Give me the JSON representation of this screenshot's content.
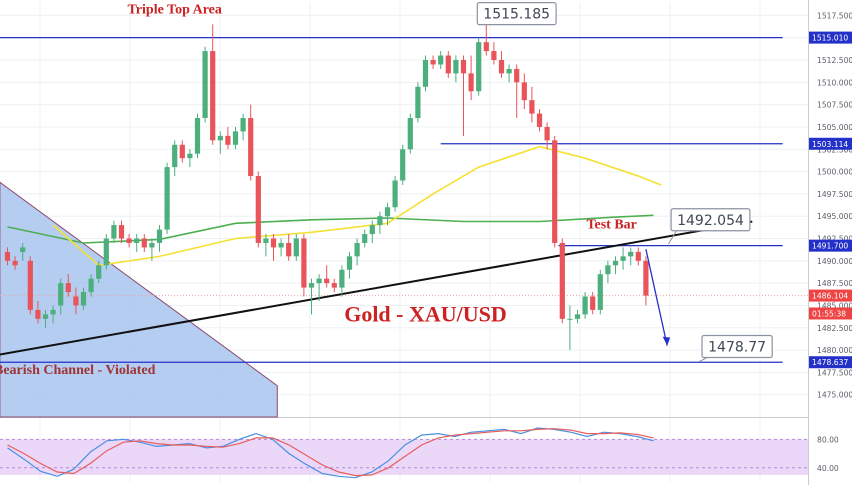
{
  "chart_data": [
    {
      "type": "candlestick",
      "title": "Gold - XAU/USD",
      "symbol": "XAU/USD",
      "ylim": [
        1472.5,
        1519.0
      ],
      "grid": true,
      "yticks": [
        "1517.500",
        "1515.000",
        "1512.500",
        "1510.000",
        "1507.500",
        "1505.000",
        "1502.500",
        "1500.000",
        "1497.500",
        "1495.000",
        "1492.500",
        "1490.000",
        "1487.500",
        "1485.000",
        "1482.500",
        "1480.000",
        "1477.500",
        "1475.000"
      ],
      "ytick_values": [
        1517.5,
        1515.0,
        1512.5,
        1510.0,
        1507.5,
        1505.0,
        1502.5,
        1500.0,
        1497.5,
        1495.0,
        1492.5,
        1490.0,
        1487.5,
        1485.0,
        1482.5,
        1480.0,
        1477.5,
        1475.0
      ],
      "price_labels": [
        {
          "name": "resistance-top",
          "value": 1515.01,
          "text": "1515.010",
          "color": "#2431c9"
        },
        {
          "name": "resistance-mid",
          "value": 1503.114,
          "text": "1503.114",
          "color": "#2431c9"
        },
        {
          "name": "test-level",
          "value": 1491.7,
          "text": "1491.700",
          "color": "#2431c9"
        },
        {
          "name": "last-price",
          "value": 1486.104,
          "text": "1486.104",
          "color": "#ee4444"
        },
        {
          "name": "countdown",
          "value": 1484.1,
          "text": "01:55:38",
          "color": "#ee4444"
        },
        {
          "name": "support",
          "value": 1478.637,
          "text": "1478.637",
          "color": "#2431c9"
        }
      ],
      "candles": [
        [
          1491,
          1491.5,
          1489.5,
          1490
        ],
        [
          1490,
          1490.5,
          1489,
          1489.5
        ],
        [
          1491,
          1492,
          1490,
          1491.5
        ],
        [
          1490,
          1490.5,
          1484,
          1484.5
        ],
        [
          1484.5,
          1485.5,
          1483,
          1483.5
        ],
        [
          1483.5,
          1484.5,
          1482.5,
          1484
        ],
        [
          1484,
          1485,
          1483,
          1484.5
        ],
        [
          1485,
          1488,
          1484,
          1487.5
        ],
        [
          1487.5,
          1488.5,
          1486,
          1486.5
        ],
        [
          1486,
          1487,
          1484,
          1485
        ],
        [
          1485,
          1487,
          1484.5,
          1486.5
        ],
        [
          1486.5,
          1488.5,
          1486,
          1488
        ],
        [
          1488,
          1490,
          1487.5,
          1489.5
        ],
        [
          1489.5,
          1493,
          1489,
          1492.5
        ],
        [
          1492.5,
          1494.5,
          1492,
          1494
        ],
        [
          1494,
          1494.5,
          1492,
          1492.5
        ],
        [
          1492.5,
          1493,
          1491.5,
          1492
        ],
        [
          1492,
          1493,
          1491,
          1492.5
        ],
        [
          1492.5,
          1493,
          1491,
          1491.5
        ],
        [
          1491.5,
          1492.5,
          1490,
          1492
        ],
        [
          1492,
          1494,
          1491,
          1493.5
        ],
        [
          1493.5,
          1501,
          1493,
          1500.5
        ],
        [
          1500.5,
          1503.5,
          1499.5,
          1503
        ],
        [
          1503,
          1503.5,
          1501,
          1501.5
        ],
        [
          1501.5,
          1502.5,
          1500.5,
          1502
        ],
        [
          1502,
          1506.5,
          1501.5,
          1506
        ],
        [
          1506,
          1514,
          1505.5,
          1513.5
        ],
        [
          1513.5,
          1516.5,
          1503,
          1503.5
        ],
        [
          1503.5,
          1504.5,
          1502,
          1504
        ],
        [
          1504,
          1505,
          1502.5,
          1503
        ],
        [
          1503,
          1505,
          1502.5,
          1504.5
        ],
        [
          1504.5,
          1506.5,
          1503.5,
          1506
        ],
        [
          1506,
          1507.5,
          1499,
          1499.5
        ],
        [
          1499.5,
          1500,
          1491.5,
          1492
        ],
        [
          1492,
          1493,
          1490.5,
          1492.5
        ],
        [
          1492.5,
          1493,
          1490,
          1491.5
        ],
        [
          1491.5,
          1492.5,
          1490.5,
          1492
        ],
        [
          1492,
          1493,
          1490,
          1490.5
        ],
        [
          1490.5,
          1493,
          1490,
          1492.5
        ],
        [
          1492.5,
          1493,
          1486,
          1487
        ],
        [
          1487,
          1488,
          1484,
          1487.5
        ],
        [
          1487.5,
          1488.5,
          1485.5,
          1488
        ],
        [
          1488,
          1489.5,
          1487,
          1487.5
        ],
        [
          1487.5,
          1488,
          1486.5,
          1487
        ],
        [
          1487,
          1489.5,
          1486,
          1489
        ],
        [
          1489,
          1491,
          1488,
          1490.5
        ],
        [
          1490.5,
          1492.5,
          1489.5,
          1492
        ],
        [
          1492,
          1493.5,
          1491.5,
          1493
        ],
        [
          1493,
          1494.5,
          1492,
          1494
        ],
        [
          1494,
          1495.5,
          1493,
          1495
        ],
        [
          1495,
          1496.5,
          1494,
          1496
        ],
        [
          1496,
          1499.5,
          1495.5,
          1499
        ],
        [
          1499,
          1503,
          1498.5,
          1502.5
        ],
        [
          1502.5,
          1506.5,
          1502,
          1506
        ],
        [
          1506,
          1510,
          1505.5,
          1509.5
        ],
        [
          1509.5,
          1513,
          1509,
          1512.5
        ],
        [
          1512.5,
          1513,
          1511.5,
          1512
        ],
        [
          1512,
          1513.5,
          1511.5,
          1513
        ],
        [
          1513,
          1513.5,
          1510.5,
          1511
        ],
        [
          1511,
          1513,
          1510,
          1512.5
        ],
        [
          1512.5,
          1513,
          1504,
          1511
        ],
        [
          1511,
          1513,
          1508,
          1509
        ],
        [
          1509,
          1515,
          1508.5,
          1514.5
        ],
        [
          1514.5,
          1516.5,
          1513,
          1513.5
        ],
        [
          1513.5,
          1514.5,
          1512,
          1512.5
        ],
        [
          1512.5,
          1513.5,
          1510.5,
          1511
        ],
        [
          1511,
          1512,
          1510,
          1511.5
        ],
        [
          1511.5,
          1512,
          1506,
          1510
        ],
        [
          1510,
          1511,
          1507,
          1508
        ],
        [
          1508,
          1509.5,
          1505.5,
          1506.5
        ],
        [
          1506.5,
          1507,
          1504.5,
          1505
        ],
        [
          1505,
          1505.5,
          1502.5,
          1503.5
        ],
        [
          1503.5,
          1504,
          1491.5,
          1492
        ],
        [
          1492,
          1492.5,
          1483,
          1483.5
        ],
        [
          1483.5,
          1485,
          1480,
          1483.5
        ],
        [
          1483.5,
          1484.5,
          1483,
          1484
        ],
        [
          1484,
          1486.5,
          1483.5,
          1486
        ],
        [
          1486,
          1486.5,
          1484,
          1484.5
        ],
        [
          1484.5,
          1489,
          1484,
          1488.5
        ],
        [
          1488.5,
          1490,
          1487.5,
          1489.5
        ],
        [
          1489.5,
          1490.5,
          1488.5,
          1490
        ],
        [
          1490,
          1491.5,
          1489,
          1490.5
        ],
        [
          1490.5,
          1491.5,
          1489.5,
          1491
        ],
        [
          1491,
          1491.5,
          1489.5,
          1490
        ],
        [
          1490,
          1490.5,
          1485,
          1486.1
        ]
      ],
      "moving_averages": [
        {
          "name": "green-ma",
          "color": "#4caf50",
          "points": [
            [
              0,
              1493.8
            ],
            [
              10,
              1492
            ],
            [
              20,
              1492.4
            ],
            [
              30,
              1494.2
            ],
            [
              40,
              1494.6
            ],
            [
              50,
              1494.8
            ],
            [
              60,
              1494.4
            ],
            [
              70,
              1494.4
            ],
            [
              80,
              1494.9
            ],
            [
              85,
              1495.1
            ]
          ]
        },
        {
          "name": "yellow-ma",
          "color": "#f5e131",
          "points": [
            [
              6,
              1494
            ],
            [
              12,
              1489.5
            ],
            [
              20,
              1490.5
            ],
            [
              30,
              1492.5
            ],
            [
              40,
              1493.2
            ],
            [
              50,
              1494.2
            ],
            [
              56,
              1497.5
            ],
            [
              62,
              1500.5
            ],
            [
              70,
              1502.8
            ],
            [
              76,
              1501.5
            ],
            [
              83,
              1499.5
            ],
            [
              86,
              1498.5
            ]
          ]
        }
      ],
      "trendline": {
        "start": [
          -1,
          1479.5
        ],
        "end": [
          98,
          1494.4
        ],
        "color": "#111111"
      },
      "bearish_channel": {
        "top_left": [
          -1,
          1498.8
        ],
        "right_bottom": [
          35.5,
          1476.0
        ],
        "fill": "#a7c4ee",
        "label": "Bearish Channel - Violated"
      },
      "horizontal_lines": [
        {
          "name": "line-1515",
          "value": 1515.01,
          "from": -1,
          "to": 102
        },
        {
          "name": "line-1503",
          "value": 1503.114,
          "from": 57,
          "to": 102
        },
        {
          "name": "line-1491",
          "value": 1491.7,
          "from": 72.5,
          "to": 102
        },
        {
          "name": "line-1478",
          "value": 1478.637,
          "from": -1,
          "to": 102
        }
      ],
      "annotations": [
        {
          "name": "triple-top-label",
          "text": "Triple Top Area",
          "color": "#cc2222",
          "at": [
            22,
            1517.7
          ]
        },
        {
          "name": "test-bar-label",
          "text": "Test Bar",
          "color": "#cc2222",
          "at": [
            79.5,
            1493.6
          ]
        },
        {
          "name": "gold-title",
          "text": "Gold - XAU/USD",
          "color": "#cc2222",
          "at": [
            55,
            1483.2
          ]
        },
        {
          "name": "bearish-label",
          "text": "Bearish Channel - Violated",
          "color": "#a03434",
          "at": [
            10,
            1477.3
          ]
        }
      ],
      "callouts": [
        {
          "name": "callout-1515",
          "text": "1515.185",
          "at": [
            67,
            1517.7
          ]
        },
        {
          "name": "callout-1492",
          "text": "1492.054",
          "at": [
            92.5,
            1494.6
          ]
        },
        {
          "name": "callout-1478",
          "text": "1478.77",
          "at": [
            96,
            1480.4
          ]
        }
      ],
      "projection_arrow": {
        "points": [
          [
            84,
            1491.3
          ],
          [
            86.8,
            1480.5
          ],
          [
            89,
            1478.7
          ]
        ],
        "color": "#2431c9"
      }
    },
    {
      "type": "line",
      "name": "stochastic",
      "ylim": [
        20,
        110
      ],
      "yticks": [
        "80.00",
        "40.00"
      ],
      "ytick_values": [
        80,
        40
      ],
      "band": [
        30,
        80
      ],
      "series": [
        {
          "color": "#4a90e2",
          "values": [
            68,
            52,
            35,
            28,
            38,
            62,
            78,
            80,
            76,
            70,
            72,
            74,
            68,
            70,
            80,
            88,
            80,
            60,
            45,
            32,
            28,
            26,
            34,
            50,
            72,
            86,
            88,
            84,
            90,
            92,
            94,
            88,
            96,
            94,
            90,
            84,
            90,
            88,
            84,
            78
          ]
        },
        {
          "color": "#e85d5d",
          "values": [
            72,
            60,
            46,
            34,
            32,
            46,
            64,
            76,
            78,
            74,
            72,
            72,
            70,
            69,
            74,
            82,
            82,
            72,
            58,
            44,
            34,
            29,
            30,
            40,
            56,
            72,
            82,
            86,
            88,
            90,
            92,
            92,
            94,
            95,
            93,
            88,
            88,
            89,
            87,
            82
          ]
        }
      ],
      "x_from": 0,
      "x_to": 85,
      "series2_segments": true
    }
  ]
}
